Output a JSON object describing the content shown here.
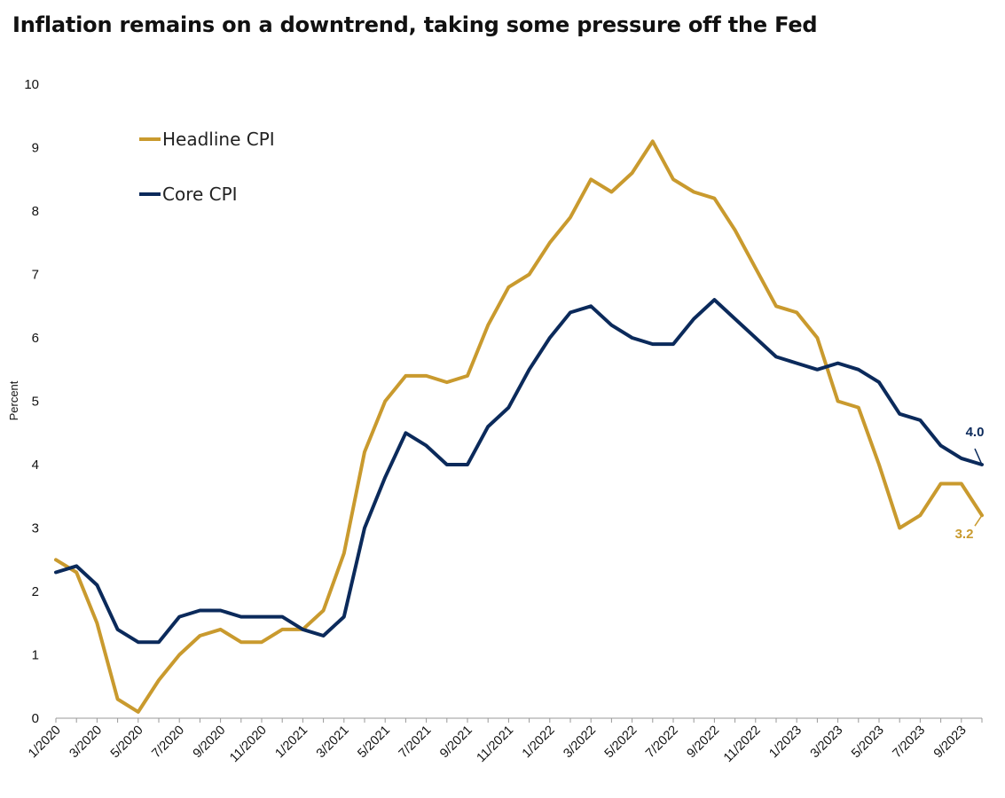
{
  "chart_data": {
    "type": "line",
    "title": "Inflation remains on a downtrend, taking some pressure off the Fed",
    "ylabel": "Percent",
    "xlabel": "",
    "ylim": [
      0,
      10
    ],
    "yticks": [
      "0",
      "1",
      "2",
      "3",
      "4",
      "5",
      "6",
      "7",
      "8",
      "9",
      "10"
    ],
    "x": [
      "1/2020",
      "2/2020",
      "3/2020",
      "4/2020",
      "5/2020",
      "6/2020",
      "7/2020",
      "8/2020",
      "9/2020",
      "10/2020",
      "11/2020",
      "12/2020",
      "1/2021",
      "2/2021",
      "3/2021",
      "4/2021",
      "5/2021",
      "6/2021",
      "7/2021",
      "8/2021",
      "9/2021",
      "10/2021",
      "11/2021",
      "12/2021",
      "1/2022",
      "2/2022",
      "3/2022",
      "4/2022",
      "5/2022",
      "6/2022",
      "7/2022",
      "8/2022",
      "9/2022",
      "10/2022",
      "11/2022",
      "12/2022",
      "1/2023",
      "2/2023",
      "3/2023",
      "4/2023",
      "5/2023",
      "6/2023",
      "7/2023",
      "8/2023",
      "9/2023",
      "10/2023"
    ],
    "xtick_labels": [
      "1/2020",
      "3/2020",
      "5/2020",
      "7/2020",
      "9/2020",
      "11/2020",
      "1/2021",
      "3/2021",
      "5/2021",
      "7/2021",
      "9/2021",
      "11/2021",
      "1/2022",
      "3/2022",
      "5/2022",
      "7/2022",
      "9/2022",
      "11/2022",
      "1/2023",
      "3/2023",
      "5/2023",
      "7/2023",
      "9/2023"
    ],
    "grid": false,
    "legend_position": "top-left",
    "series": [
      {
        "name": "Headline CPI",
        "color": "#C99A2E",
        "values": [
          2.5,
          2.3,
          1.5,
          0.3,
          0.1,
          0.6,
          1.0,
          1.3,
          1.4,
          1.2,
          1.2,
          1.4,
          1.4,
          1.7,
          2.6,
          4.2,
          5.0,
          5.4,
          5.4,
          5.3,
          5.4,
          6.2,
          6.8,
          7.0,
          7.5,
          7.9,
          8.5,
          8.3,
          8.6,
          9.1,
          8.5,
          8.3,
          8.2,
          7.7,
          7.1,
          6.5,
          6.4,
          6.0,
          5.0,
          4.9,
          4.0,
          3.0,
          3.2,
          3.7,
          3.7,
          3.2
        ],
        "end_label": "3.2"
      },
      {
        "name": "Core CPI",
        "color": "#0B2A5B",
        "values": [
          2.3,
          2.4,
          2.1,
          1.4,
          1.2,
          1.2,
          1.6,
          1.7,
          1.7,
          1.6,
          1.6,
          1.6,
          1.4,
          1.3,
          1.6,
          3.0,
          3.8,
          4.5,
          4.3,
          4.0,
          4.0,
          4.6,
          4.9,
          5.5,
          6.0,
          6.4,
          6.5,
          6.2,
          6.0,
          5.9,
          5.9,
          6.3,
          6.6,
          6.3,
          6.0,
          5.7,
          5.6,
          5.5,
          5.6,
          5.5,
          5.3,
          4.8,
          4.7,
          4.3,
          4.1,
          4.0
        ],
        "end_label": "4.0"
      }
    ]
  }
}
